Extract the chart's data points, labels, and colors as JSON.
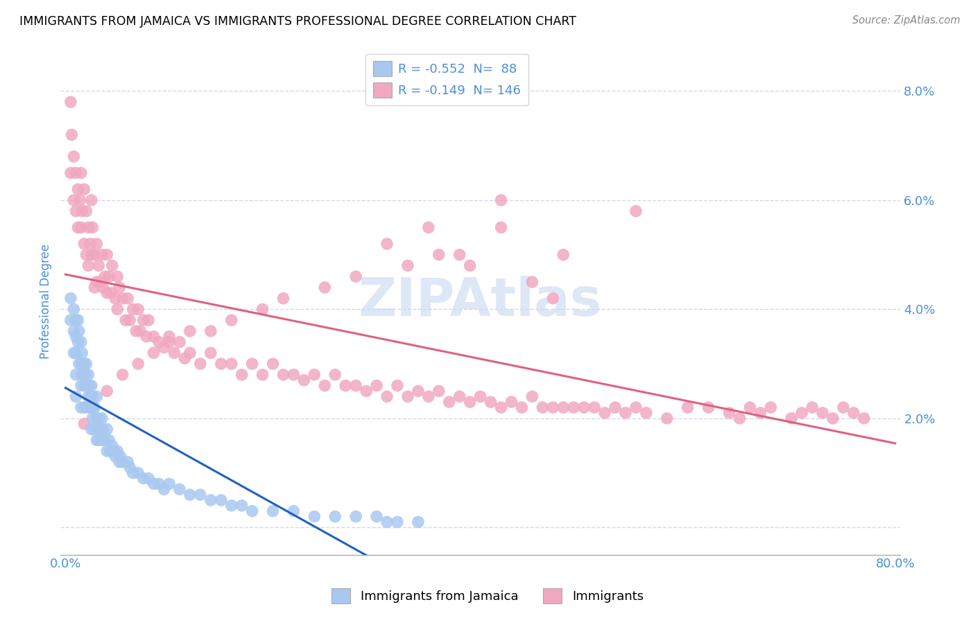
{
  "title": "IMMIGRANTS FROM JAMAICA VS IMMIGRANTS PROFESSIONAL DEGREE CORRELATION CHART",
  "source": "Source: ZipAtlas.com",
  "ylabel": "Professional Degree",
  "xlim": [
    -0.005,
    0.805
  ],
  "ylim": [
    -0.005,
    0.088
  ],
  "xticks": [
    0.0,
    0.1,
    0.2,
    0.3,
    0.4,
    0.5,
    0.6,
    0.7,
    0.8
  ],
  "yticks": [
    0.0,
    0.02,
    0.04,
    0.06,
    0.08
  ],
  "xticklabels": [
    "0.0%",
    "",
    "",
    "",
    "",
    "",
    "",
    "",
    "80.0%"
  ],
  "yticklabels_right": [
    "",
    "2.0%",
    "4.0%",
    "6.0%",
    "8.0%"
  ],
  "blue_color": "#a8c8f0",
  "pink_color": "#f0a8c0",
  "blue_line_color": "#2060c0",
  "pink_line_color": "#e06080",
  "watermark_color": "#c8d8f0",
  "grid_color": "#d0d8e8",
  "title_color": "#000000",
  "source_color": "#888888",
  "tick_label_color": "#4a90d9",
  "legend_r1": "R = -0.552  N=  88",
  "legend_r2": "R = -0.149  N= 146",
  "blue_x": [
    0.005,
    0.005,
    0.008,
    0.008,
    0.008,
    0.01,
    0.01,
    0.01,
    0.01,
    0.01,
    0.012,
    0.012,
    0.013,
    0.013,
    0.015,
    0.015,
    0.015,
    0.015,
    0.016,
    0.016,
    0.018,
    0.018,
    0.018,
    0.019,
    0.02,
    0.02,
    0.02,
    0.022,
    0.022,
    0.023,
    0.023,
    0.024,
    0.025,
    0.025,
    0.025,
    0.026,
    0.026,
    0.027,
    0.028,
    0.028,
    0.03,
    0.03,
    0.03,
    0.032,
    0.032,
    0.033,
    0.035,
    0.035,
    0.036,
    0.038,
    0.04,
    0.04,
    0.042,
    0.043,
    0.045,
    0.047,
    0.048,
    0.05,
    0.052,
    0.053,
    0.055,
    0.06,
    0.062,
    0.065,
    0.07,
    0.075,
    0.08,
    0.085,
    0.09,
    0.095,
    0.1,
    0.11,
    0.12,
    0.13,
    0.14,
    0.15,
    0.16,
    0.17,
    0.18,
    0.2,
    0.22,
    0.24,
    0.26,
    0.28,
    0.3,
    0.31,
    0.32,
    0.34
  ],
  "blue_y": [
    0.042,
    0.038,
    0.04,
    0.036,
    0.032,
    0.038,
    0.035,
    0.032,
    0.028,
    0.024,
    0.038,
    0.034,
    0.036,
    0.03,
    0.034,
    0.03,
    0.026,
    0.022,
    0.032,
    0.028,
    0.03,
    0.026,
    0.022,
    0.028,
    0.03,
    0.026,
    0.022,
    0.028,
    0.024,
    0.026,
    0.022,
    0.024,
    0.026,
    0.022,
    0.018,
    0.024,
    0.02,
    0.022,
    0.022,
    0.018,
    0.024,
    0.02,
    0.016,
    0.02,
    0.016,
    0.018,
    0.02,
    0.016,
    0.018,
    0.016,
    0.018,
    0.014,
    0.016,
    0.014,
    0.015,
    0.014,
    0.013,
    0.014,
    0.012,
    0.013,
    0.012,
    0.012,
    0.011,
    0.01,
    0.01,
    0.009,
    0.009,
    0.008,
    0.008,
    0.007,
    0.008,
    0.007,
    0.006,
    0.006,
    0.005,
    0.005,
    0.004,
    0.004,
    0.003,
    0.003,
    0.003,
    0.002,
    0.002,
    0.002,
    0.002,
    0.001,
    0.001,
    0.001
  ],
  "pink_x": [
    0.005,
    0.005,
    0.006,
    0.008,
    0.008,
    0.01,
    0.01,
    0.012,
    0.012,
    0.014,
    0.015,
    0.015,
    0.016,
    0.018,
    0.018,
    0.02,
    0.02,
    0.022,
    0.022,
    0.024,
    0.025,
    0.025,
    0.026,
    0.028,
    0.028,
    0.03,
    0.03,
    0.032,
    0.034,
    0.035,
    0.036,
    0.038,
    0.04,
    0.04,
    0.042,
    0.044,
    0.045,
    0.048,
    0.05,
    0.05,
    0.052,
    0.055,
    0.058,
    0.06,
    0.062,
    0.065,
    0.068,
    0.07,
    0.072,
    0.075,
    0.078,
    0.08,
    0.085,
    0.09,
    0.095,
    0.1,
    0.105,
    0.11,
    0.115,
    0.12,
    0.13,
    0.14,
    0.15,
    0.16,
    0.17,
    0.18,
    0.19,
    0.2,
    0.21,
    0.22,
    0.23,
    0.24,
    0.25,
    0.26,
    0.27,
    0.28,
    0.29,
    0.3,
    0.31,
    0.32,
    0.33,
    0.34,
    0.35,
    0.36,
    0.37,
    0.38,
    0.39,
    0.4,
    0.41,
    0.42,
    0.43,
    0.44,
    0.45,
    0.46,
    0.47,
    0.48,
    0.49,
    0.5,
    0.51,
    0.52,
    0.53,
    0.54,
    0.55,
    0.56,
    0.58,
    0.6,
    0.62,
    0.64,
    0.65,
    0.66,
    0.67,
    0.68,
    0.7,
    0.71,
    0.72,
    0.73,
    0.74,
    0.75,
    0.76,
    0.77,
    0.55,
    0.42,
    0.48,
    0.35,
    0.39,
    0.31,
    0.45,
    0.42,
    0.47,
    0.38,
    0.36,
    0.33,
    0.28,
    0.25,
    0.21,
    0.19,
    0.16,
    0.14,
    0.12,
    0.1,
    0.085,
    0.07,
    0.055,
    0.04,
    0.025,
    0.018
  ],
  "pink_y": [
    0.078,
    0.065,
    0.072,
    0.068,
    0.06,
    0.065,
    0.058,
    0.062,
    0.055,
    0.06,
    0.065,
    0.055,
    0.058,
    0.062,
    0.052,
    0.058,
    0.05,
    0.055,
    0.048,
    0.052,
    0.06,
    0.05,
    0.055,
    0.05,
    0.044,
    0.052,
    0.045,
    0.048,
    0.045,
    0.05,
    0.044,
    0.046,
    0.05,
    0.043,
    0.046,
    0.043,
    0.048,
    0.042,
    0.046,
    0.04,
    0.044,
    0.042,
    0.038,
    0.042,
    0.038,
    0.04,
    0.036,
    0.04,
    0.036,
    0.038,
    0.035,
    0.038,
    0.035,
    0.034,
    0.033,
    0.034,
    0.032,
    0.034,
    0.031,
    0.032,
    0.03,
    0.032,
    0.03,
    0.03,
    0.028,
    0.03,
    0.028,
    0.03,
    0.028,
    0.028,
    0.027,
    0.028,
    0.026,
    0.028,
    0.026,
    0.026,
    0.025,
    0.026,
    0.024,
    0.026,
    0.024,
    0.025,
    0.024,
    0.025,
    0.023,
    0.024,
    0.023,
    0.024,
    0.023,
    0.022,
    0.023,
    0.022,
    0.024,
    0.022,
    0.022,
    0.022,
    0.022,
    0.022,
    0.022,
    0.021,
    0.022,
    0.021,
    0.022,
    0.021,
    0.02,
    0.022,
    0.022,
    0.021,
    0.02,
    0.022,
    0.021,
    0.022,
    0.02,
    0.021,
    0.022,
    0.021,
    0.02,
    0.022,
    0.021,
    0.02,
    0.058,
    0.055,
    0.05,
    0.055,
    0.048,
    0.052,
    0.045,
    0.06,
    0.042,
    0.05,
    0.05,
    0.048,
    0.046,
    0.044,
    0.042,
    0.04,
    0.038,
    0.036,
    0.036,
    0.035,
    0.032,
    0.03,
    0.028,
    0.025,
    0.022,
    0.019
  ]
}
